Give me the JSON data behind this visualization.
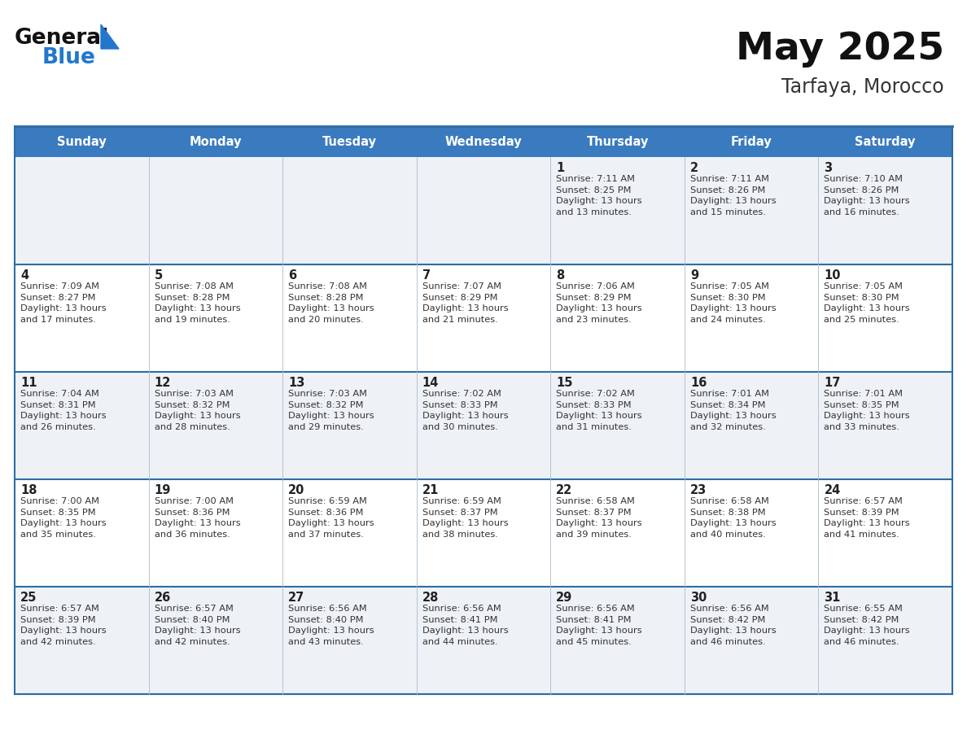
{
  "title": "May 2025",
  "subtitle": "Tarfaya, Morocco",
  "days_of_week": [
    "Sunday",
    "Monday",
    "Tuesday",
    "Wednesday",
    "Thursday",
    "Friday",
    "Saturday"
  ],
  "header_bg": "#3a7abf",
  "header_text": "#ffffff",
  "row_bg_odd": "#eef2f7",
  "row_bg_even": "#ffffff",
  "border_color": "#2e6da4",
  "inner_border_color": "#2e6da4",
  "day_number_color": "#222222",
  "text_color": "#333333",
  "title_color": "#111111",
  "subtitle_color": "#333333",
  "logo_general_color": "#111111",
  "logo_blue_color": "#2277cc",
  "cell_data": [
    [
      "",
      "",
      "",
      "",
      "1\nSunrise: 7:11 AM\nSunset: 8:25 PM\nDaylight: 13 hours\nand 13 minutes.",
      "2\nSunrise: 7:11 AM\nSunset: 8:26 PM\nDaylight: 13 hours\nand 15 minutes.",
      "3\nSunrise: 7:10 AM\nSunset: 8:26 PM\nDaylight: 13 hours\nand 16 minutes."
    ],
    [
      "4\nSunrise: 7:09 AM\nSunset: 8:27 PM\nDaylight: 13 hours\nand 17 minutes.",
      "5\nSunrise: 7:08 AM\nSunset: 8:28 PM\nDaylight: 13 hours\nand 19 minutes.",
      "6\nSunrise: 7:08 AM\nSunset: 8:28 PM\nDaylight: 13 hours\nand 20 minutes.",
      "7\nSunrise: 7:07 AM\nSunset: 8:29 PM\nDaylight: 13 hours\nand 21 minutes.",
      "8\nSunrise: 7:06 AM\nSunset: 8:29 PM\nDaylight: 13 hours\nand 23 minutes.",
      "9\nSunrise: 7:05 AM\nSunset: 8:30 PM\nDaylight: 13 hours\nand 24 minutes.",
      "10\nSunrise: 7:05 AM\nSunset: 8:30 PM\nDaylight: 13 hours\nand 25 minutes."
    ],
    [
      "11\nSunrise: 7:04 AM\nSunset: 8:31 PM\nDaylight: 13 hours\nand 26 minutes.",
      "12\nSunrise: 7:03 AM\nSunset: 8:32 PM\nDaylight: 13 hours\nand 28 minutes.",
      "13\nSunrise: 7:03 AM\nSunset: 8:32 PM\nDaylight: 13 hours\nand 29 minutes.",
      "14\nSunrise: 7:02 AM\nSunset: 8:33 PM\nDaylight: 13 hours\nand 30 minutes.",
      "15\nSunrise: 7:02 AM\nSunset: 8:33 PM\nDaylight: 13 hours\nand 31 minutes.",
      "16\nSunrise: 7:01 AM\nSunset: 8:34 PM\nDaylight: 13 hours\nand 32 minutes.",
      "17\nSunrise: 7:01 AM\nSunset: 8:35 PM\nDaylight: 13 hours\nand 33 minutes."
    ],
    [
      "18\nSunrise: 7:00 AM\nSunset: 8:35 PM\nDaylight: 13 hours\nand 35 minutes.",
      "19\nSunrise: 7:00 AM\nSunset: 8:36 PM\nDaylight: 13 hours\nand 36 minutes.",
      "20\nSunrise: 6:59 AM\nSunset: 8:36 PM\nDaylight: 13 hours\nand 37 minutes.",
      "21\nSunrise: 6:59 AM\nSunset: 8:37 PM\nDaylight: 13 hours\nand 38 minutes.",
      "22\nSunrise: 6:58 AM\nSunset: 8:37 PM\nDaylight: 13 hours\nand 39 minutes.",
      "23\nSunrise: 6:58 AM\nSunset: 8:38 PM\nDaylight: 13 hours\nand 40 minutes.",
      "24\nSunrise: 6:57 AM\nSunset: 8:39 PM\nDaylight: 13 hours\nand 41 minutes."
    ],
    [
      "25\nSunrise: 6:57 AM\nSunset: 8:39 PM\nDaylight: 13 hours\nand 42 minutes.",
      "26\nSunrise: 6:57 AM\nSunset: 8:40 PM\nDaylight: 13 hours\nand 42 minutes.",
      "27\nSunrise: 6:56 AM\nSunset: 8:40 PM\nDaylight: 13 hours\nand 43 minutes.",
      "28\nSunrise: 6:56 AM\nSunset: 8:41 PM\nDaylight: 13 hours\nand 44 minutes.",
      "29\nSunrise: 6:56 AM\nSunset: 8:41 PM\nDaylight: 13 hours\nand 45 minutes.",
      "30\nSunrise: 6:56 AM\nSunset: 8:42 PM\nDaylight: 13 hours\nand 46 minutes.",
      "31\nSunrise: 6:55 AM\nSunset: 8:42 PM\nDaylight: 13 hours\nand 46 minutes."
    ]
  ],
  "figsize": [
    11.88,
    9.18
  ],
  "dpi": 100
}
